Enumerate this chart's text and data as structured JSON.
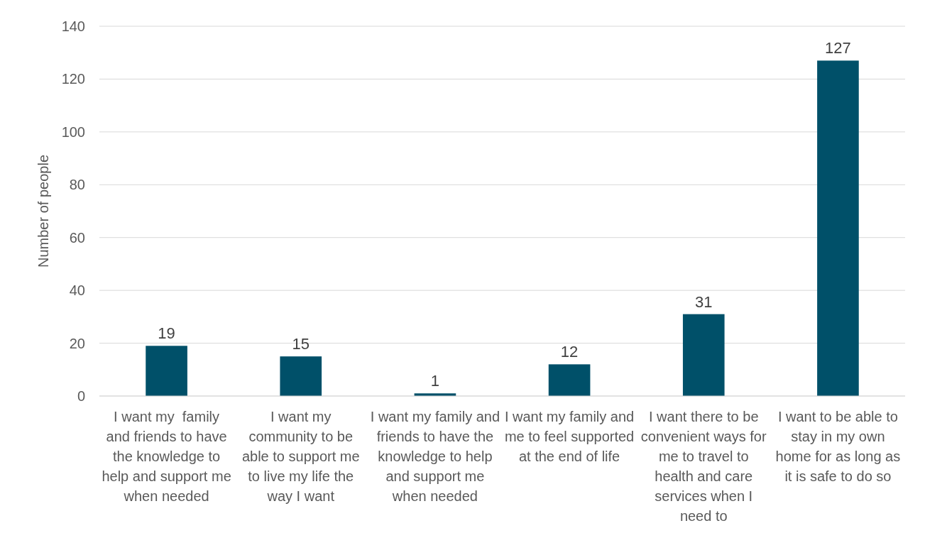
{
  "chart_data": {
    "type": "bar",
    "ylabel": "Number of people",
    "categories": [
      "I want my  family and friends to have the knowledge to help and support me when needed",
      "I want my community to be able to support me to live my life the way I want",
      "I want my family and friends to have the knowledge to help and support me when needed",
      "I want my family and me to feel supported at the end of life",
      "I want there to be convenient ways for me to travel to health and care services when I need to",
      "I want to be able to stay in my own home for as long as it is safe to do so"
    ],
    "values": [
      19,
      15,
      1,
      12,
      31,
      127
    ],
    "color": "#005069",
    "ylim": [
      0,
      140
    ],
    "yticks": [
      0,
      20,
      40,
      60,
      80,
      100,
      120,
      140
    ],
    "grid": "y",
    "data_labels": true
  }
}
